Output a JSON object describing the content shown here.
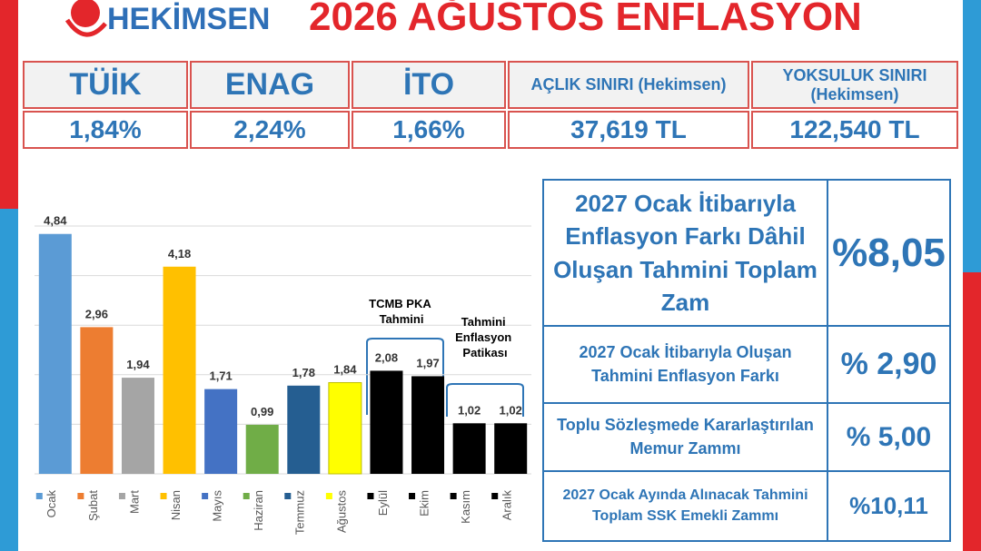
{
  "header": {
    "logo": "HEKİMSEN",
    "title": "2026 AĞUSTOS ENFLASYON"
  },
  "summary_table": {
    "headers": [
      "TÜİK",
      "ENAG",
      "İTO",
      "AÇLIK SINIRI (Hekimsen)",
      "YOKSULUK SINIRI (Hekimsen)"
    ],
    "values": [
      "1,84%",
      "2,24%",
      "1,66%",
      "37,619 TL",
      "122,540 TL"
    ]
  },
  "chart_data": {
    "type": "bar",
    "categories": [
      "Ocak",
      "Şubat",
      "Mart",
      "Nisan",
      "Mayıs",
      "Haziran",
      "Temmuz",
      "Ağustos",
      "Eylül",
      "Ekim",
      "Kasım",
      "Aralık"
    ],
    "values": [
      4.84,
      2.96,
      1.94,
      4.18,
      1.71,
      0.99,
      1.78,
      1.84,
      2.08,
      1.97,
      1.02,
      1.02
    ],
    "value_labels": [
      "4,84",
      "2,96",
      "1,94",
      "4,18",
      "1,71",
      "0,99",
      "1,78",
      "1,84",
      "2,08",
      "1,97",
      "1,02",
      "1,02"
    ],
    "colors": [
      "#5b9bd5",
      "#ed7d31",
      "#a5a5a5",
      "#ffc000",
      "#4472c4",
      "#70ad47",
      "#255e91",
      "#ffff00",
      "#000000",
      "#000000",
      "#000000",
      "#000000"
    ],
    "ylim": [
      0,
      5
    ],
    "yticks": [
      0,
      1,
      2,
      3,
      4,
      5
    ],
    "grid": true,
    "annotations": [
      "TCMB PKA Tahmini",
      "Tahmini Enflasyon Patikası"
    ]
  },
  "info_table": {
    "rows": [
      {
        "label": "2027 Ocak İtibarıyla Enflasyon Farkı Dâhil Oluşan Tahmini Toplam Zam",
        "value": "%8,05"
      },
      {
        "label": "2027 Ocak İtibarıyla Oluşan Tahmini Enflasyon Farkı",
        "value": "% 2,90"
      },
      {
        "label": "Toplu Sözleşmede Kararlaştırılan Memur Zammı",
        "value": "% 5,00"
      },
      {
        "label": "2027 Ocak Ayında Alınacak Tahmini Toplam SSK Emekli Zammı",
        "value": "%10,11"
      }
    ]
  }
}
